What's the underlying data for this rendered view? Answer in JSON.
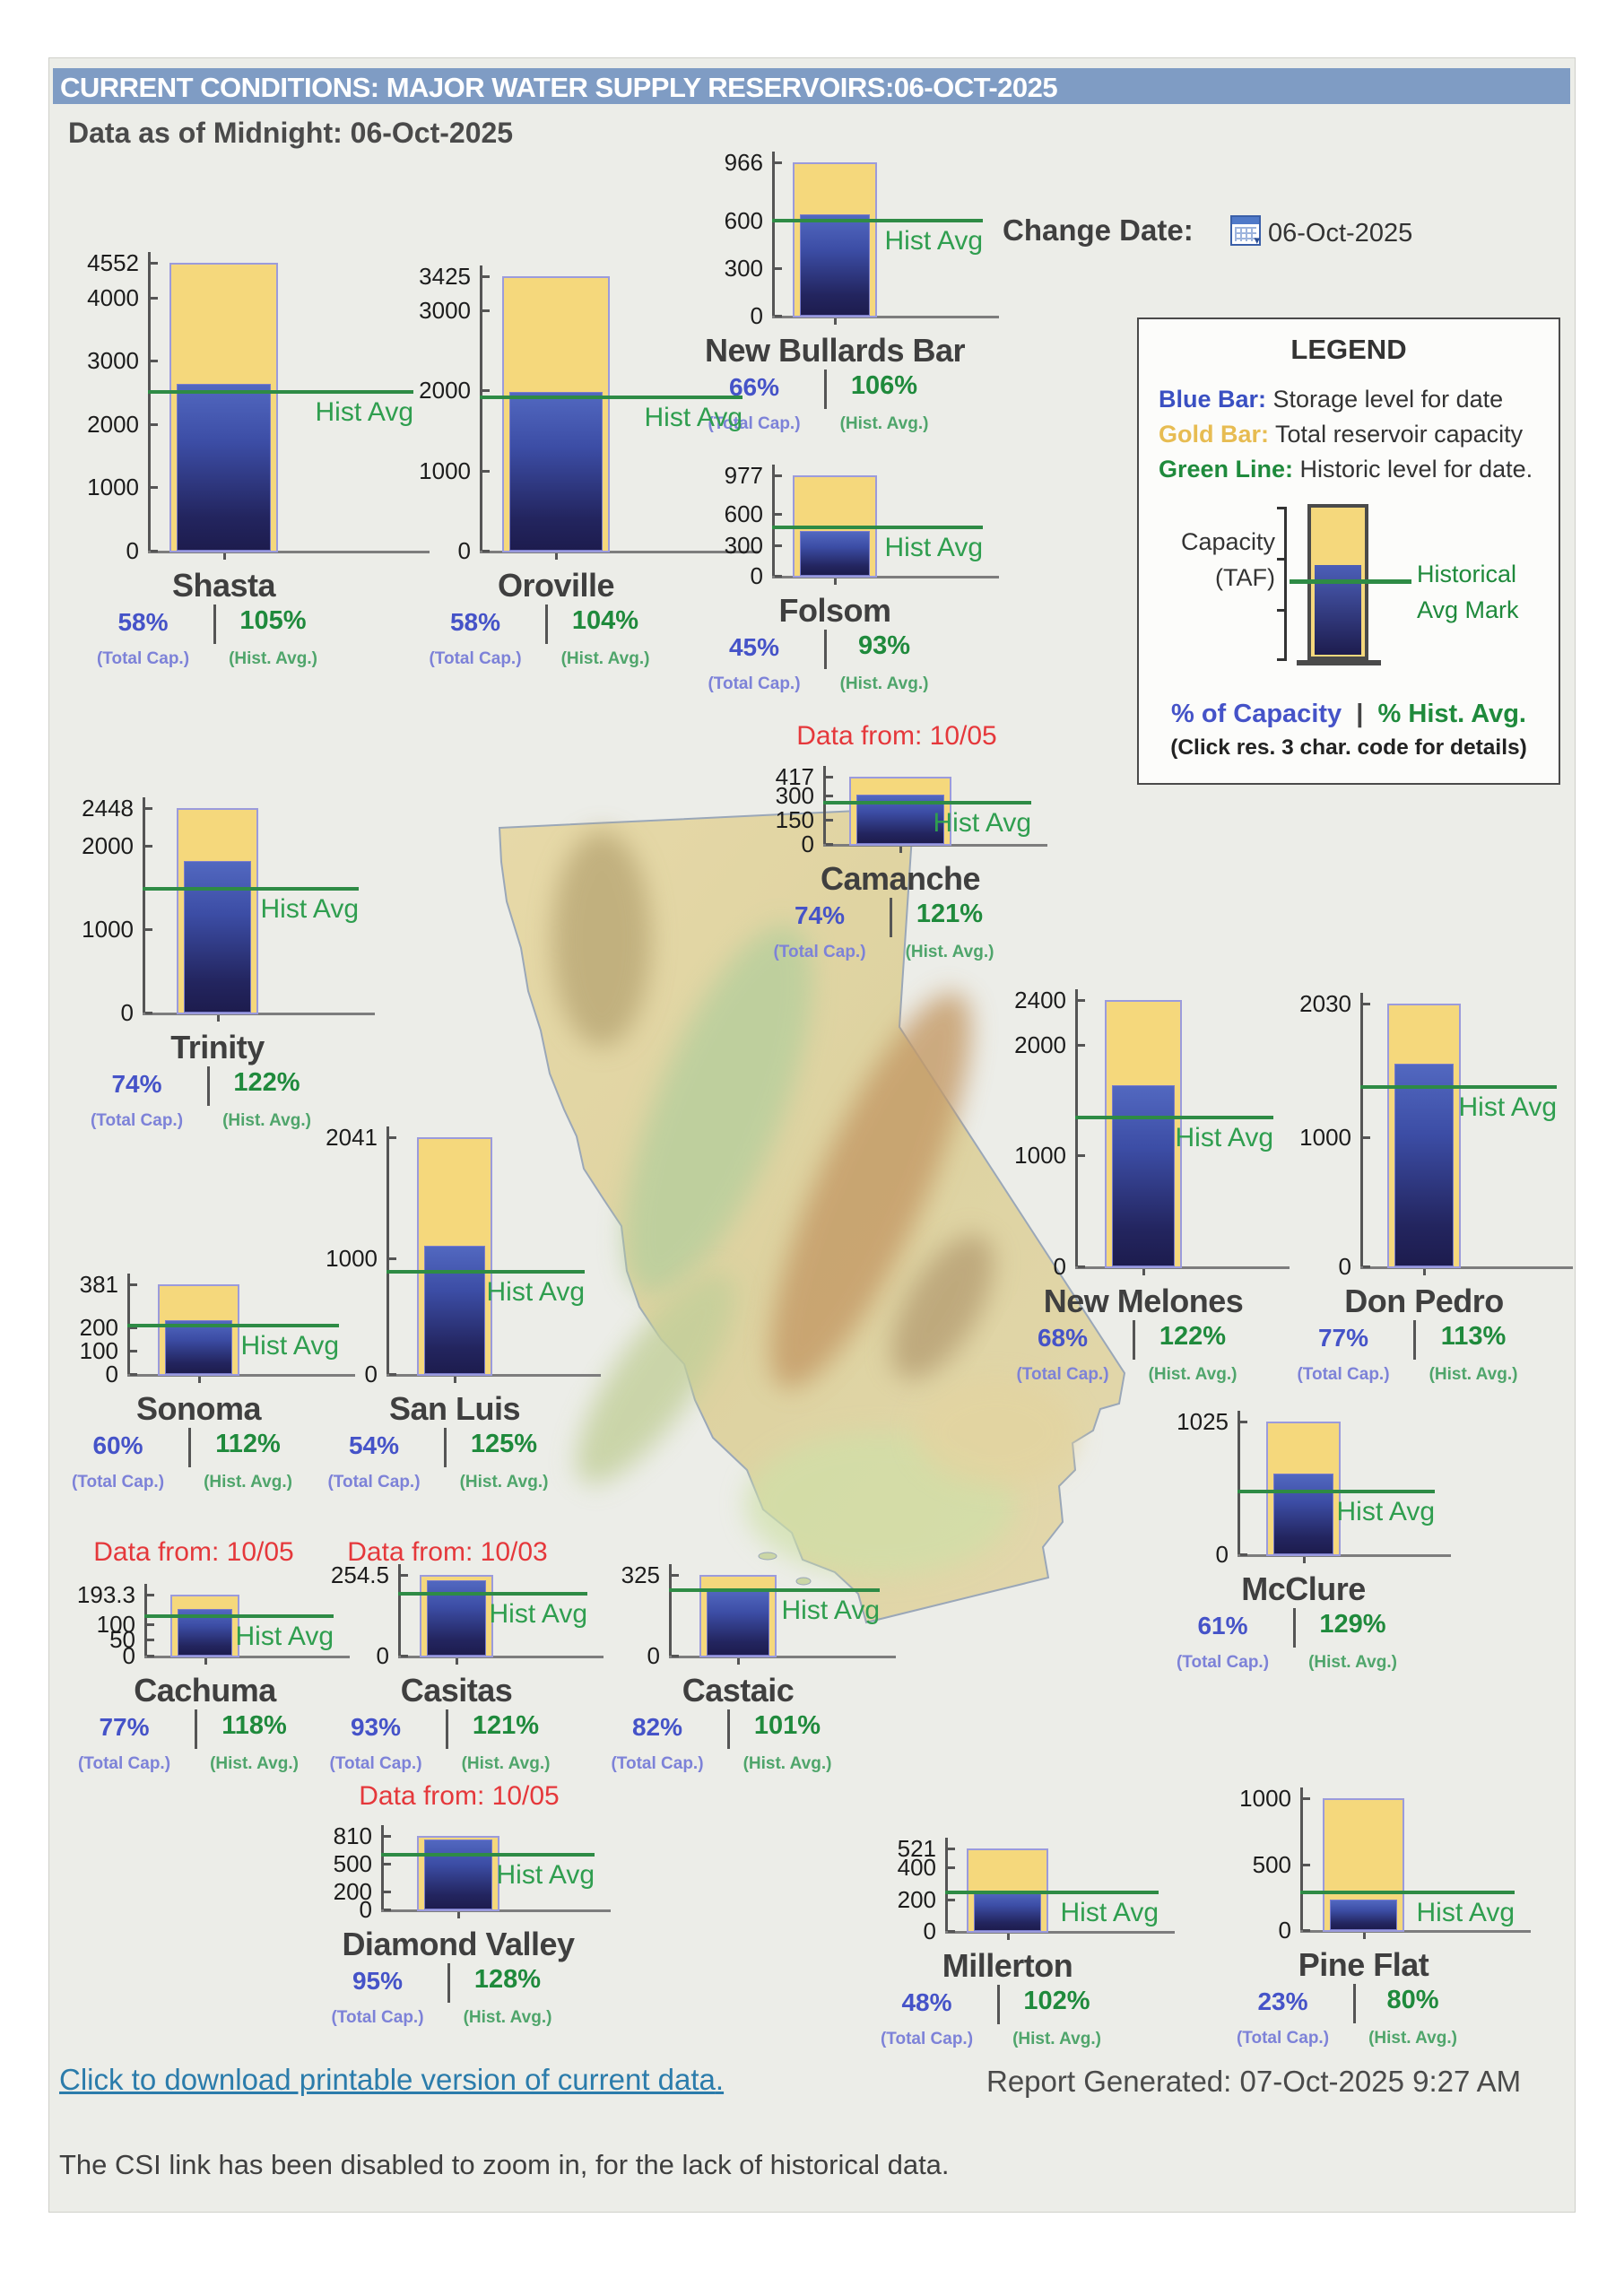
{
  "page": {
    "title_bar": "CURRENT CONDITIONS: MAJOR WATER SUPPLY RESERVOIRS:06-OCT-2025",
    "subtitle": "Data as of Midnight: 06-Oct-2025",
    "download_link": "Click to download printable version of current data",
    "download_link_suffix": ".",
    "report_generated": "Report Generated: 07-Oct-2025 9:27 AM",
    "csi_note": "The CSI link has been disabled to zoom in, for the lack of historical data."
  },
  "change_date": {
    "label": "Change Date:",
    "value": "06-Oct-2025",
    "icon": "calendar-icon"
  },
  "legend": {
    "title": "LEGEND",
    "items": [
      {
        "label": "Blue Bar:",
        "text": " Storage level for date",
        "color": "#3a50c2"
      },
      {
        "label": "Gold Bar:",
        "text": " Total reservoir capacity",
        "color": "#e7bc52"
      },
      {
        "label": "Green Line:",
        "text": " Historic level for date.",
        "color": "#1f8a3c"
      }
    ],
    "capacity_label": "Capacity",
    "capacity_units": "(TAF)",
    "hist_mark_line1": "Historical",
    "hist_mark_line2": "Avg Mark",
    "pct_capacity": "% of Capacity",
    "pct_separator": "|",
    "pct_hist": "% Hist. Avg.",
    "note": "(Click res. 3 char. code for details)"
  },
  "shared": {
    "hist_avg_label": "Hist Avg",
    "total_cap_caption": "(Total Cap.)",
    "hist_avg_caption": "(Hist. Avg.)"
  },
  "colors": {
    "header_bar": "#7f9cc4",
    "panel_bg": "#ecede8",
    "capacity_gold": "#f5d87c",
    "gold_border": "#9b9bdc",
    "storage_blue_top": "#5268c0",
    "storage_blue_bottom": "#1d1c4e",
    "hist_avg_green": "#2e8b45",
    "pct_blue": "#4553c8",
    "pct_green": "#1f8a3c",
    "data_from_red": "#e5383b",
    "link_blue": "#2b7cab"
  },
  "chart_data": {
    "type": "bar",
    "unit": "TAF",
    "title": "Current Conditions: Major Water Supply Reservoirs 06-Oct-2025",
    "legend_position": "upper-right",
    "reservoirs": [
      {
        "name": "Shasta",
        "capacity": 4552,
        "ticks": [
          "4552",
          "4000",
          "3000",
          "2000",
          "1000",
          "0"
        ],
        "pct_of_capacity": 58,
        "pct_of_hist_avg": 105,
        "storage_taf_est": 2640,
        "hist_avg_taf_est": 2515,
        "data_from": null
      },
      {
        "name": "Oroville",
        "capacity": 3425,
        "ticks": [
          "3425",
          "3000",
          "2000",
          "1000",
          "0"
        ],
        "pct_of_capacity": 58,
        "pct_of_hist_avg": 104,
        "storage_taf_est": 1987,
        "hist_avg_taf_est": 1910,
        "data_from": null
      },
      {
        "name": "New Bullards Bar",
        "capacity": 966,
        "ticks": [
          "966",
          "600",
          "300",
          "0"
        ],
        "pct_of_capacity": 66,
        "pct_of_hist_avg": 106,
        "storage_taf_est": 638,
        "hist_avg_taf_est": 602,
        "data_from": null
      },
      {
        "name": "Folsom",
        "capacity": 977,
        "ticks": [
          "977",
          "600",
          "300",
          "0"
        ],
        "pct_of_capacity": 45,
        "pct_of_hist_avg": 93,
        "storage_taf_est": 440,
        "hist_avg_taf_est": 473,
        "data_from": null
      },
      {
        "name": "Camanche",
        "capacity": 417,
        "ticks": [
          "417",
          "300",
          "150",
          "0"
        ],
        "pct_of_capacity": 74,
        "pct_of_hist_avg": 121,
        "storage_taf_est": 309,
        "hist_avg_taf_est": 255,
        "data_from": "Data from: 10/05"
      },
      {
        "name": "Trinity",
        "capacity": 2448,
        "ticks": [
          "2448",
          "2000",
          "1000",
          "0"
        ],
        "pct_of_capacity": 74,
        "pct_of_hist_avg": 122,
        "storage_taf_est": 1812,
        "hist_avg_taf_est": 1485,
        "data_from": null
      },
      {
        "name": "Sonoma",
        "capacity": 381,
        "ticks": [
          "381",
          "200",
          "100",
          "0"
        ],
        "pct_of_capacity": 60,
        "pct_of_hist_avg": 112,
        "storage_taf_est": 229,
        "hist_avg_taf_est": 204,
        "data_from": null
      },
      {
        "name": "San Luis",
        "capacity": 2041,
        "ticks": [
          "2041",
          "1000",
          "0"
        ],
        "pct_of_capacity": 54,
        "pct_of_hist_avg": 125,
        "storage_taf_est": 1102,
        "hist_avg_taf_est": 882,
        "data_from": null
      },
      {
        "name": "New Melones",
        "capacity": 2400,
        "ticks": [
          "2400",
          "2000",
          "1000",
          "0"
        ],
        "pct_of_capacity": 68,
        "pct_of_hist_avg": 122,
        "storage_taf_est": 1632,
        "hist_avg_taf_est": 1338,
        "data_from": null
      },
      {
        "name": "Don Pedro",
        "capacity": 2030,
        "ticks": [
          "2030",
          "1000",
          "0"
        ],
        "pct_of_capacity": 77,
        "pct_of_hist_avg": 113,
        "storage_taf_est": 1563,
        "hist_avg_taf_est": 1383,
        "data_from": null
      },
      {
        "name": "McClure",
        "capacity": 1025,
        "ticks": [
          "1025",
          "0"
        ],
        "pct_of_capacity": 61,
        "pct_of_hist_avg": 129,
        "storage_taf_est": 625,
        "hist_avg_taf_est": 485,
        "data_from": null
      },
      {
        "name": "Cachuma",
        "capacity": 193.3,
        "ticks": [
          "193.3",
          "100",
          "50",
          "0"
        ],
        "pct_of_capacity": 77,
        "pct_of_hist_avg": 118,
        "storage_taf_est": 149,
        "hist_avg_taf_est": 126,
        "data_from": "Data from: 10/05"
      },
      {
        "name": "Casitas",
        "capacity": 254.5,
        "ticks": [
          "254.5",
          "0"
        ],
        "pct_of_capacity": 93,
        "pct_of_hist_avg": 121,
        "storage_taf_est": 237,
        "hist_avg_taf_est": 196,
        "data_from": "Data from: 10/03"
      },
      {
        "name": "Castaic",
        "capacity": 325,
        "ticks": [
          "325",
          "0"
        ],
        "pct_of_capacity": 82,
        "pct_of_hist_avg": 101,
        "storage_taf_est": 267,
        "hist_avg_taf_est": 264,
        "data_from": null
      },
      {
        "name": "Diamond Valley",
        "capacity": 810,
        "ticks": [
          "810",
          "500",
          "200",
          "0"
        ],
        "pct_of_capacity": 95,
        "pct_of_hist_avg": 128,
        "storage_taf_est": 770,
        "hist_avg_taf_est": 601,
        "data_from": "Data from: 10/05"
      },
      {
        "name": "Millerton",
        "capacity": 521,
        "ticks": [
          "521",
          "400",
          "200",
          "0"
        ],
        "pct_of_capacity": 48,
        "pct_of_hist_avg": 102,
        "storage_taf_est": 250,
        "hist_avg_taf_est": 245,
        "data_from": null
      },
      {
        "name": "Pine Flat",
        "capacity": 1000,
        "ticks": [
          "1000",
          "500",
          "0"
        ],
        "pct_of_capacity": 23,
        "pct_of_hist_avg": 80,
        "storage_taf_est": 230,
        "hist_avg_taf_est": 288,
        "data_from": null
      }
    ]
  }
}
